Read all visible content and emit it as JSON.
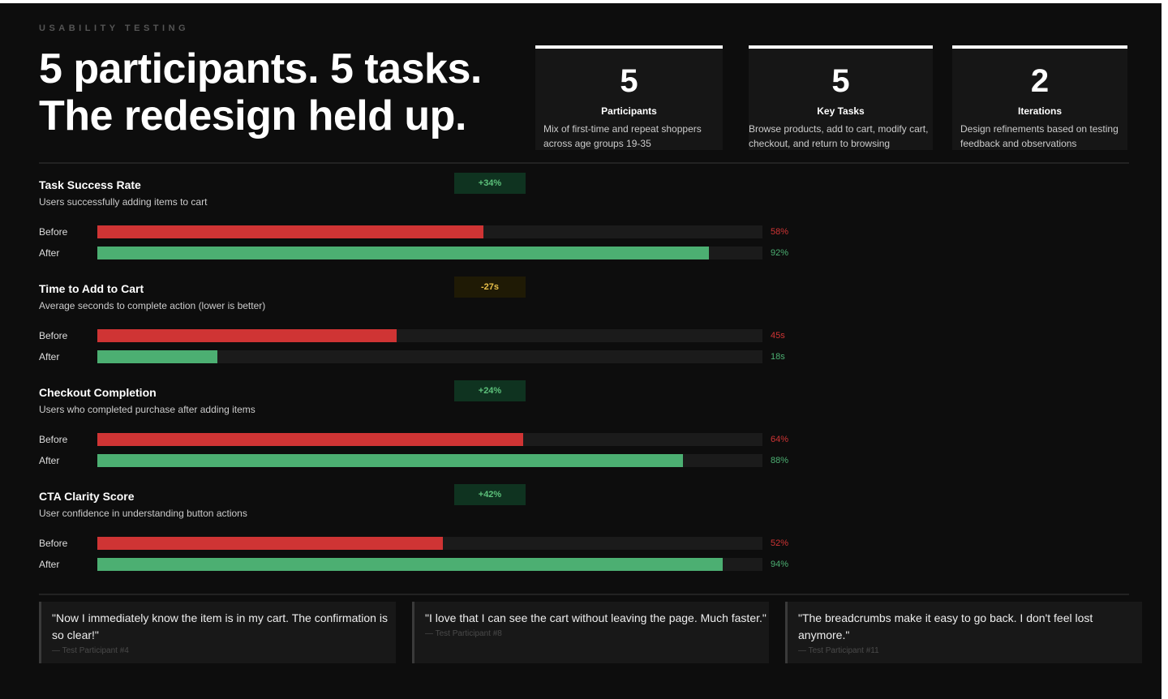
{
  "eyebrow": "USABILITY TESTING",
  "headline": {
    "line1": "5 participants. 5 tasks.",
    "line2": "The redesign held up."
  },
  "stats": [
    {
      "value": "5",
      "label": "Participants",
      "desc": "Mix of first-time and repeat shoppers across age groups 19-35"
    },
    {
      "value": "5",
      "label": "Key Tasks",
      "desc": "Browse products, add to cart, modify cart, checkout, and return to browsing"
    },
    {
      "value": "2",
      "label": "Iterations",
      "desc": "Design refinements based on testing feedback and observations"
    }
  ],
  "colors": {
    "before": "#cf3434",
    "after": "#4caf72",
    "badge_green_bg": "#0f3320",
    "badge_green_fg": "#5cc07a",
    "badge_yellow_bg": "#1f1a05",
    "badge_yellow_fg": "#e8c04a"
  },
  "metrics": [
    {
      "title": "Task Success Rate",
      "subtitle": "Users successfully adding items to cart",
      "badge": "+34%",
      "badge_type": "green",
      "before_label": "Before",
      "after_label": "After",
      "before": 58,
      "after": 92,
      "before_text": "58%",
      "after_text": "92%"
    },
    {
      "title": "Time to Add to Cart",
      "subtitle": "Average seconds to complete action (lower is better)",
      "badge": "-27s",
      "badge_type": "yellow",
      "before_label": "Before",
      "after_label": "After",
      "before": 45,
      "after": 18,
      "before_text": "45s",
      "after_text": "18s"
    },
    {
      "title": "Checkout Completion",
      "subtitle": "Users who completed purchase after adding items",
      "badge": "+24%",
      "badge_type": "green",
      "before_label": "Before",
      "after_label": "After",
      "before": 64,
      "after": 88,
      "before_text": "64%",
      "after_text": "88%"
    },
    {
      "title": "CTA Clarity Score",
      "subtitle": "User confidence in understanding button actions",
      "badge": "+42%",
      "badge_type": "green",
      "before_label": "Before",
      "after_label": "After",
      "before": 52,
      "after": 94,
      "before_text": "52%",
      "after_text": "94%"
    }
  ],
  "quotes": [
    {
      "text": "\"Now I immediately know the item is in my cart. The confirmation is so clear!\"",
      "author": "— Test Participant #4"
    },
    {
      "text": "\"I love that I can see the cart without leaving the page. Much faster.\"",
      "author": "— Test Participant #8"
    },
    {
      "text": "\"The breadcrumbs make it easy to go back. I don't feel lost anymore.\"",
      "author": "— Test Participant #11"
    }
  ]
}
